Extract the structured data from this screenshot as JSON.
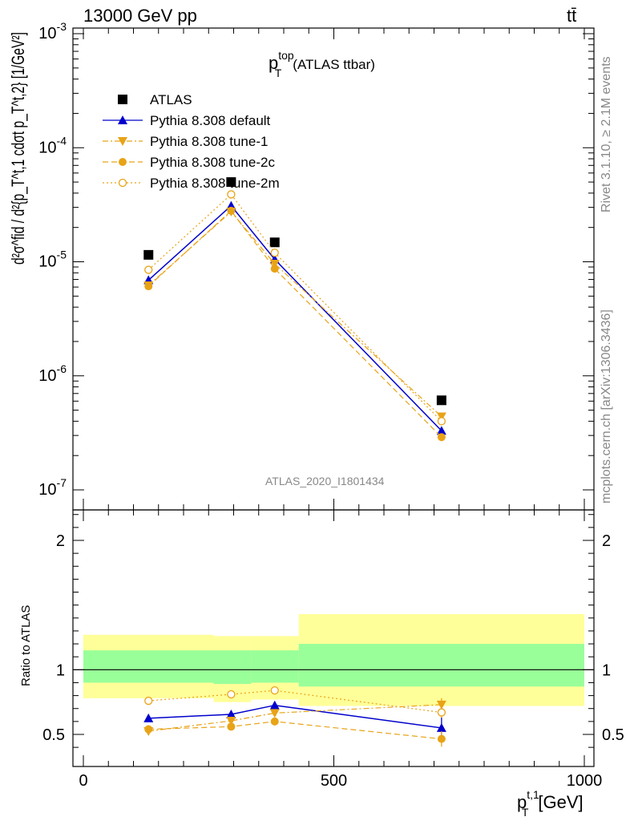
{
  "header": {
    "left": "13000 GeV pp",
    "right": "tt̄"
  },
  "side_text": {
    "rivet": "Rivet 3.1.10, ≥ 2.1M events",
    "mcplots": "mcplots.cern.ch [arXiv:1306.3436]"
  },
  "chart_data": [
    {
      "type": "scatter",
      "title_main": "p",
      "title_sup": "top",
      "title_sub": "T",
      "title_suffix": "(ATLAS ttbar)",
      "analysis_label": "ATLAS_2020_I1801434",
      "yscale": "log",
      "ylim": [
        1e-07,
        0.001
      ],
      "xlim": [
        -25,
        1000
      ],
      "y_ticks": [
        "10^-3",
        "10^-4",
        "10^-5",
        "10^-6",
        "10^-7"
      ],
      "ylabel_text": "d²σ^fid / d²{p_T^t,1 cdσt p_T^t,2}  [1/GeV²]",
      "legend_position": "top-left",
      "x": [
        130,
        295,
        382,
        715
      ],
      "series": [
        {
          "name": "ATLAS",
          "color": "#000000",
          "marker": "square",
          "line": "none",
          "values": [
            1.15e-05,
            5e-05,
            1.48e-05,
            6.1e-07
          ]
        },
        {
          "name": "Pythia 8.308 default",
          "color": "#0000cc",
          "marker": "triangle-up",
          "line": "solid",
          "values": [
            6.9e-06,
            3.1e-05,
            1.05e-05,
            3.3e-07
          ]
        },
        {
          "name": "Pythia 8.308 tune-1",
          "color": "#e8a317",
          "marker": "triangle-down",
          "line": "dashdot",
          "values": [
            6.2e-06,
            2.75e-05,
            9.6e-06,
            4.4e-07
          ]
        },
        {
          "name": "Pythia 8.308 tune-2c",
          "color": "#e8a317",
          "marker": "circle",
          "line": "dashed",
          "values": [
            6.1e-06,
            2.8e-05,
            8.7e-06,
            2.9e-07
          ]
        },
        {
          "name": "Pythia 8.308 tune-2m",
          "color": "#e8a317",
          "marker": "circle-open",
          "line": "dotted",
          "values": [
            8.5e-06,
            3.9e-05,
            1.2e-05,
            4e-07
          ]
        }
      ]
    },
    {
      "type": "scatter",
      "ylabel": "Ratio to ATLAS",
      "xlabel_main": "p",
      "xlabel_sup": "t,1",
      "xlabel_sub": "T",
      "xlabel_unit": "[GeV]",
      "ylim": [
        0.35,
        2.3
      ],
      "xlim": [
        -25,
        1000
      ],
      "y_ticks": [
        0.5,
        1,
        2
      ],
      "x_ticks": [
        0,
        500,
        1000
      ],
      "bands": [
        {
          "x0": 0,
          "x1": 260,
          "stat_lo": 0.9,
          "stat_hi": 1.15,
          "tot_lo": 0.78,
          "tot_hi": 1.27
        },
        {
          "x0": 260,
          "x1": 335,
          "stat_lo": 0.89,
          "stat_hi": 1.15,
          "tot_lo": 0.75,
          "tot_hi": 1.26
        },
        {
          "x0": 335,
          "x1": 430,
          "stat_lo": 0.9,
          "stat_hi": 1.15,
          "tot_lo": 0.77,
          "tot_hi": 1.26
        },
        {
          "x0": 430,
          "x1": 1000,
          "stat_lo": 0.87,
          "stat_hi": 1.2,
          "tot_lo": 0.72,
          "tot_hi": 1.43
        }
      ],
      "band_colors": {
        "stat": "#99ff99",
        "total": "#ffff99"
      },
      "x": [
        130,
        295,
        382,
        715
      ],
      "series": [
        {
          "name": "Pythia 8.308 default",
          "color": "#0000cc",
          "marker": "triangle-up",
          "line": "solid",
          "values": [
            0.625,
            0.655,
            0.725,
            0.55
          ],
          "err": [
            0.02,
            0.02,
            0.025,
            0.08
          ]
        },
        {
          "name": "Pythia 8.308 tune-1",
          "color": "#e8a317",
          "marker": "triangle-down",
          "line": "dashdot",
          "values": [
            0.525,
            0.605,
            0.665,
            0.73
          ],
          "err": [
            0.03,
            0.02,
            0.03,
            0.05
          ]
        },
        {
          "name": "Pythia 8.308 tune-2c",
          "color": "#e8a317",
          "marker": "circle",
          "line": "dashed",
          "values": [
            0.54,
            0.56,
            0.6,
            0.465
          ],
          "err": [
            0.02,
            0.02,
            0.03,
            0.06
          ]
        },
        {
          "name": "Pythia 8.308 tune-2m",
          "color": "#e8a317",
          "marker": "circle-open",
          "line": "dotted",
          "values": [
            0.76,
            0.81,
            0.84,
            0.67
          ],
          "err": [
            0.015,
            0.015,
            0.02,
            0.04
          ]
        }
      ]
    }
  ]
}
